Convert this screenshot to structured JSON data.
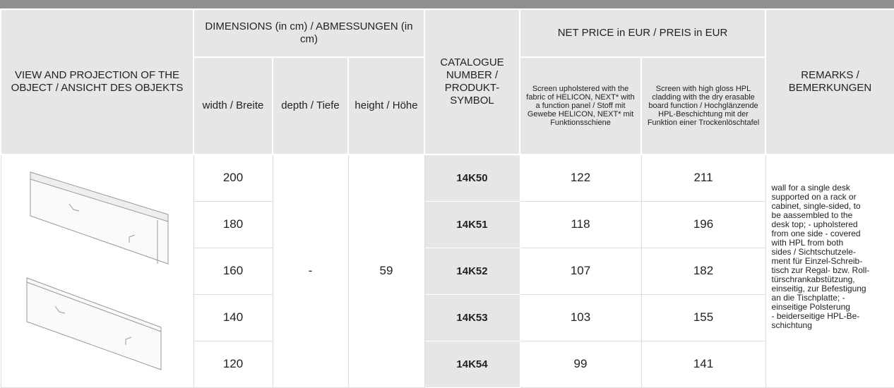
{
  "header": {
    "view": "VIEW AND PROJECTION OF THE OBJECT / ANSICHT DES OBJEKTS",
    "dimensions": "DIMENSIONS (in cm) / ABMESSUNGEN (in cm)",
    "width": "width / Breite",
    "depth": "depth / Tiefe",
    "height": "height / Höhe",
    "catalogue": "CATALOGUE NUMBER / PRODUKT-SYMBOL",
    "price": "NET PRICE in EUR / PREIS in EUR",
    "price_fabric": "Screen upholstered with the fabric of HELICON, NEXT* with a function panel / Stoff mit Gewebe HELICON, NEXT* mit Funktionsschiene",
    "price_hpl": "Screen with high gloss HPL cladding with the dry erasable board function / Hochglänzende HPL-Beschichtung mit der Funktion einer Trockenlöschtafel",
    "remarks": "REMARKS / BEMERKUNGEN"
  },
  "depth": "-",
  "height": "59",
  "rows": [
    [
      "200",
      "14K50",
      "122",
      "211"
    ],
    [
      "180",
      "14K51",
      "118",
      "196"
    ],
    [
      "160",
      "14K52",
      "107",
      "182"
    ],
    [
      "140",
      "14K53",
      "103",
      "155"
    ],
    [
      "120",
      "14K54",
      "99",
      "141"
    ]
  ],
  "remarks": [
    "wall for a single desk",
    "supported on a rack or",
    "cabinet, single-sided, to",
    "be aassembled to the",
    "desk top; - upholstered",
    "from one side - covered",
    "with HPL from both",
    "sides / Sichtschutzele-",
    "ment für Einzel-Schreib-",
    "tisch zur Regal- bzw. Roll-",
    "türschrankabstützung,",
    "einseitig, zur Befestigung",
    "an die Tischplatte; -",
    "einseitige Polsterung",
    "- beiderseitige HPL-Be-",
    "schichtung"
  ]
}
